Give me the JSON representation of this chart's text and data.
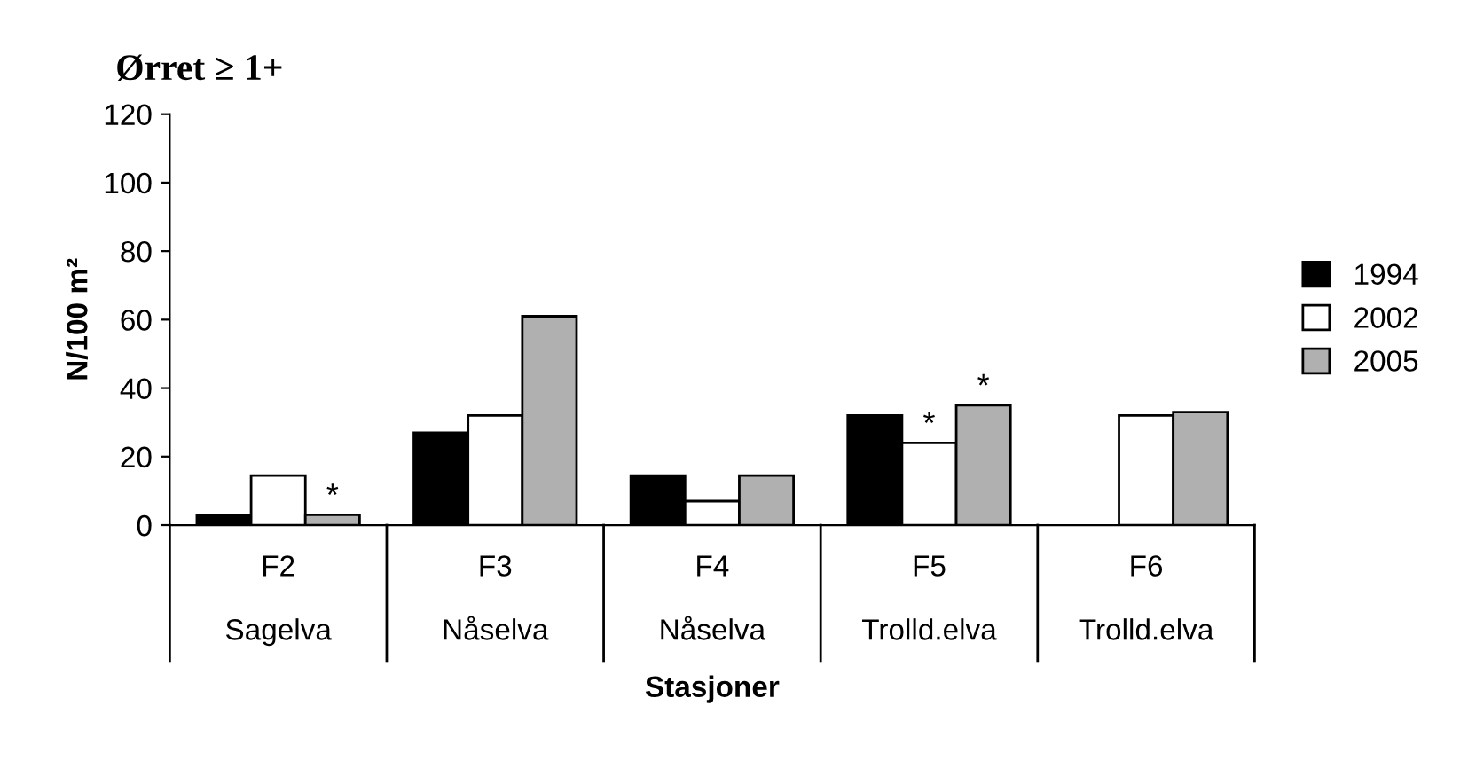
{
  "chart_data": {
    "type": "bar",
    "title": "Ørret ≥ 1+",
    "xlabel": "Stasjoner",
    "ylabel": "N/100 m²",
    "categories": [
      "F2\n\nSagelva",
      "F3\n\nNåselva",
      "F4\n\nNåselva",
      "F5\n\nTrolld.elva",
      "F6\n\nTrolld.elva"
    ],
    "series": [
      {
        "name": "1994",
        "color": "#000000",
        "values": [
          3,
          27,
          14.5,
          32,
          null
        ]
      },
      {
        "name": "2002",
        "color": "#ffffff",
        "values": [
          14.5,
          32,
          7,
          24,
          32
        ],
        "value_labels": [
          null,
          null,
          null,
          "*",
          null
        ]
      },
      {
        "name": "2005",
        "color": "#b0b0b0",
        "values": [
          3,
          61,
          14.5,
          35,
          33
        ],
        "value_labels": [
          "*",
          null,
          null,
          "*",
          null
        ]
      }
    ],
    "ylim": [
      0,
      120
    ],
    "yticks": [
      0,
      20,
      40,
      60,
      80,
      100,
      120
    ],
    "grid": false,
    "legend": "right"
  }
}
